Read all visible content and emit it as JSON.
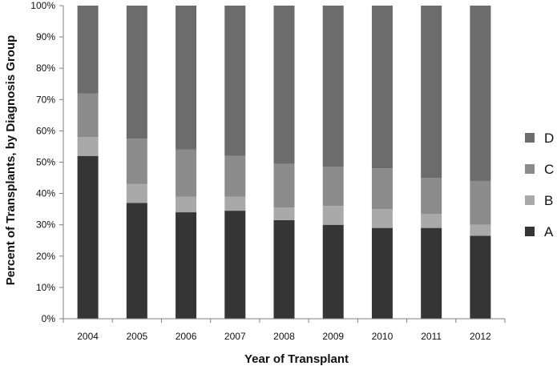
{
  "chart_data": {
    "type": "bar",
    "stacked": true,
    "title": "",
    "xlabel": "Year of Transplant",
    "ylabel": "Percent of Transplants, by Diagnosis Group",
    "ylim": [
      0,
      100
    ],
    "y_tick_labels": [
      "0%",
      "10%",
      "20%",
      "30%",
      "40%",
      "50%",
      "60%",
      "70%",
      "80%",
      "90%",
      "100%"
    ],
    "grid": false,
    "legend_position": "right",
    "categories": [
      "2004",
      "2005",
      "2006",
      "2007",
      "2008",
      "2009",
      "2010",
      "2011",
      "2012"
    ],
    "series": [
      {
        "name": "A",
        "color": "#353535",
        "values": [
          52,
          37,
          34,
          34.5,
          31.5,
          30,
          29,
          29,
          26.5
        ]
      },
      {
        "name": "B",
        "color": "#a9a9a9",
        "values": [
          6,
          6,
          5,
          4.5,
          4,
          6,
          6,
          4.5,
          3.5
        ]
      },
      {
        "name": "C",
        "color": "#8b8b8b",
        "values": [
          14,
          14.5,
          15,
          13,
          14,
          12.5,
          13,
          11.5,
          14
        ]
      },
      {
        "name": "D",
        "color": "#6c6c6c",
        "values": [
          28,
          42.5,
          46,
          48,
          50.5,
          51.5,
          52,
          55,
          56
        ]
      }
    ],
    "legend_order": [
      "D",
      "C",
      "B",
      "A"
    ]
  }
}
